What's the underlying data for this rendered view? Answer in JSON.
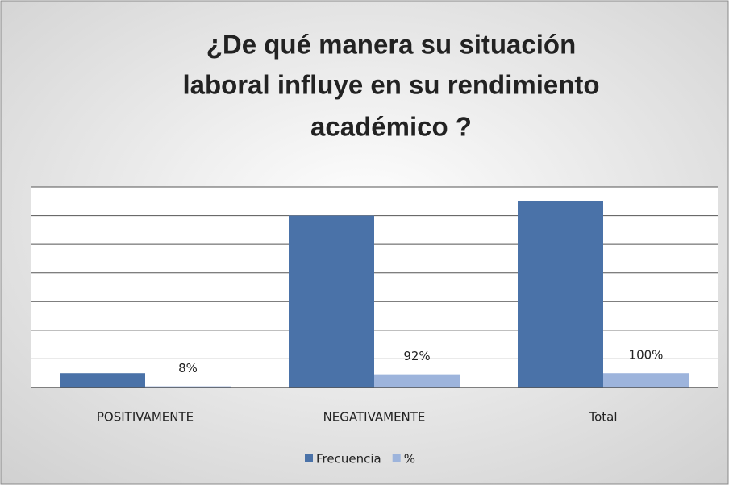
{
  "chart_data": {
    "type": "bar",
    "title": [
      "¿De qué manera su situación",
      "laboral influye en su rendimiento",
      "académico    ?"
    ],
    "categories": [
      "POSITIVAMENTE",
      "NEGATIVAMENTE",
      "Total"
    ],
    "series": [
      {
        "name": "Frecuencia",
        "color": "#4a72a8",
        "values": [
          1,
          12,
          13
        ]
      },
      {
        "name": "%",
        "color": "#9db4dc",
        "values": [
          0.08,
          0.92,
          1
        ],
        "value_labels": [
          "8%",
          "92%",
          "100%"
        ]
      }
    ],
    "ylim": [
      0,
      14
    ],
    "yticks": [
      0,
      2,
      4,
      6,
      8,
      10,
      12,
      14
    ],
    "grid": true,
    "legend": "bottom"
  }
}
